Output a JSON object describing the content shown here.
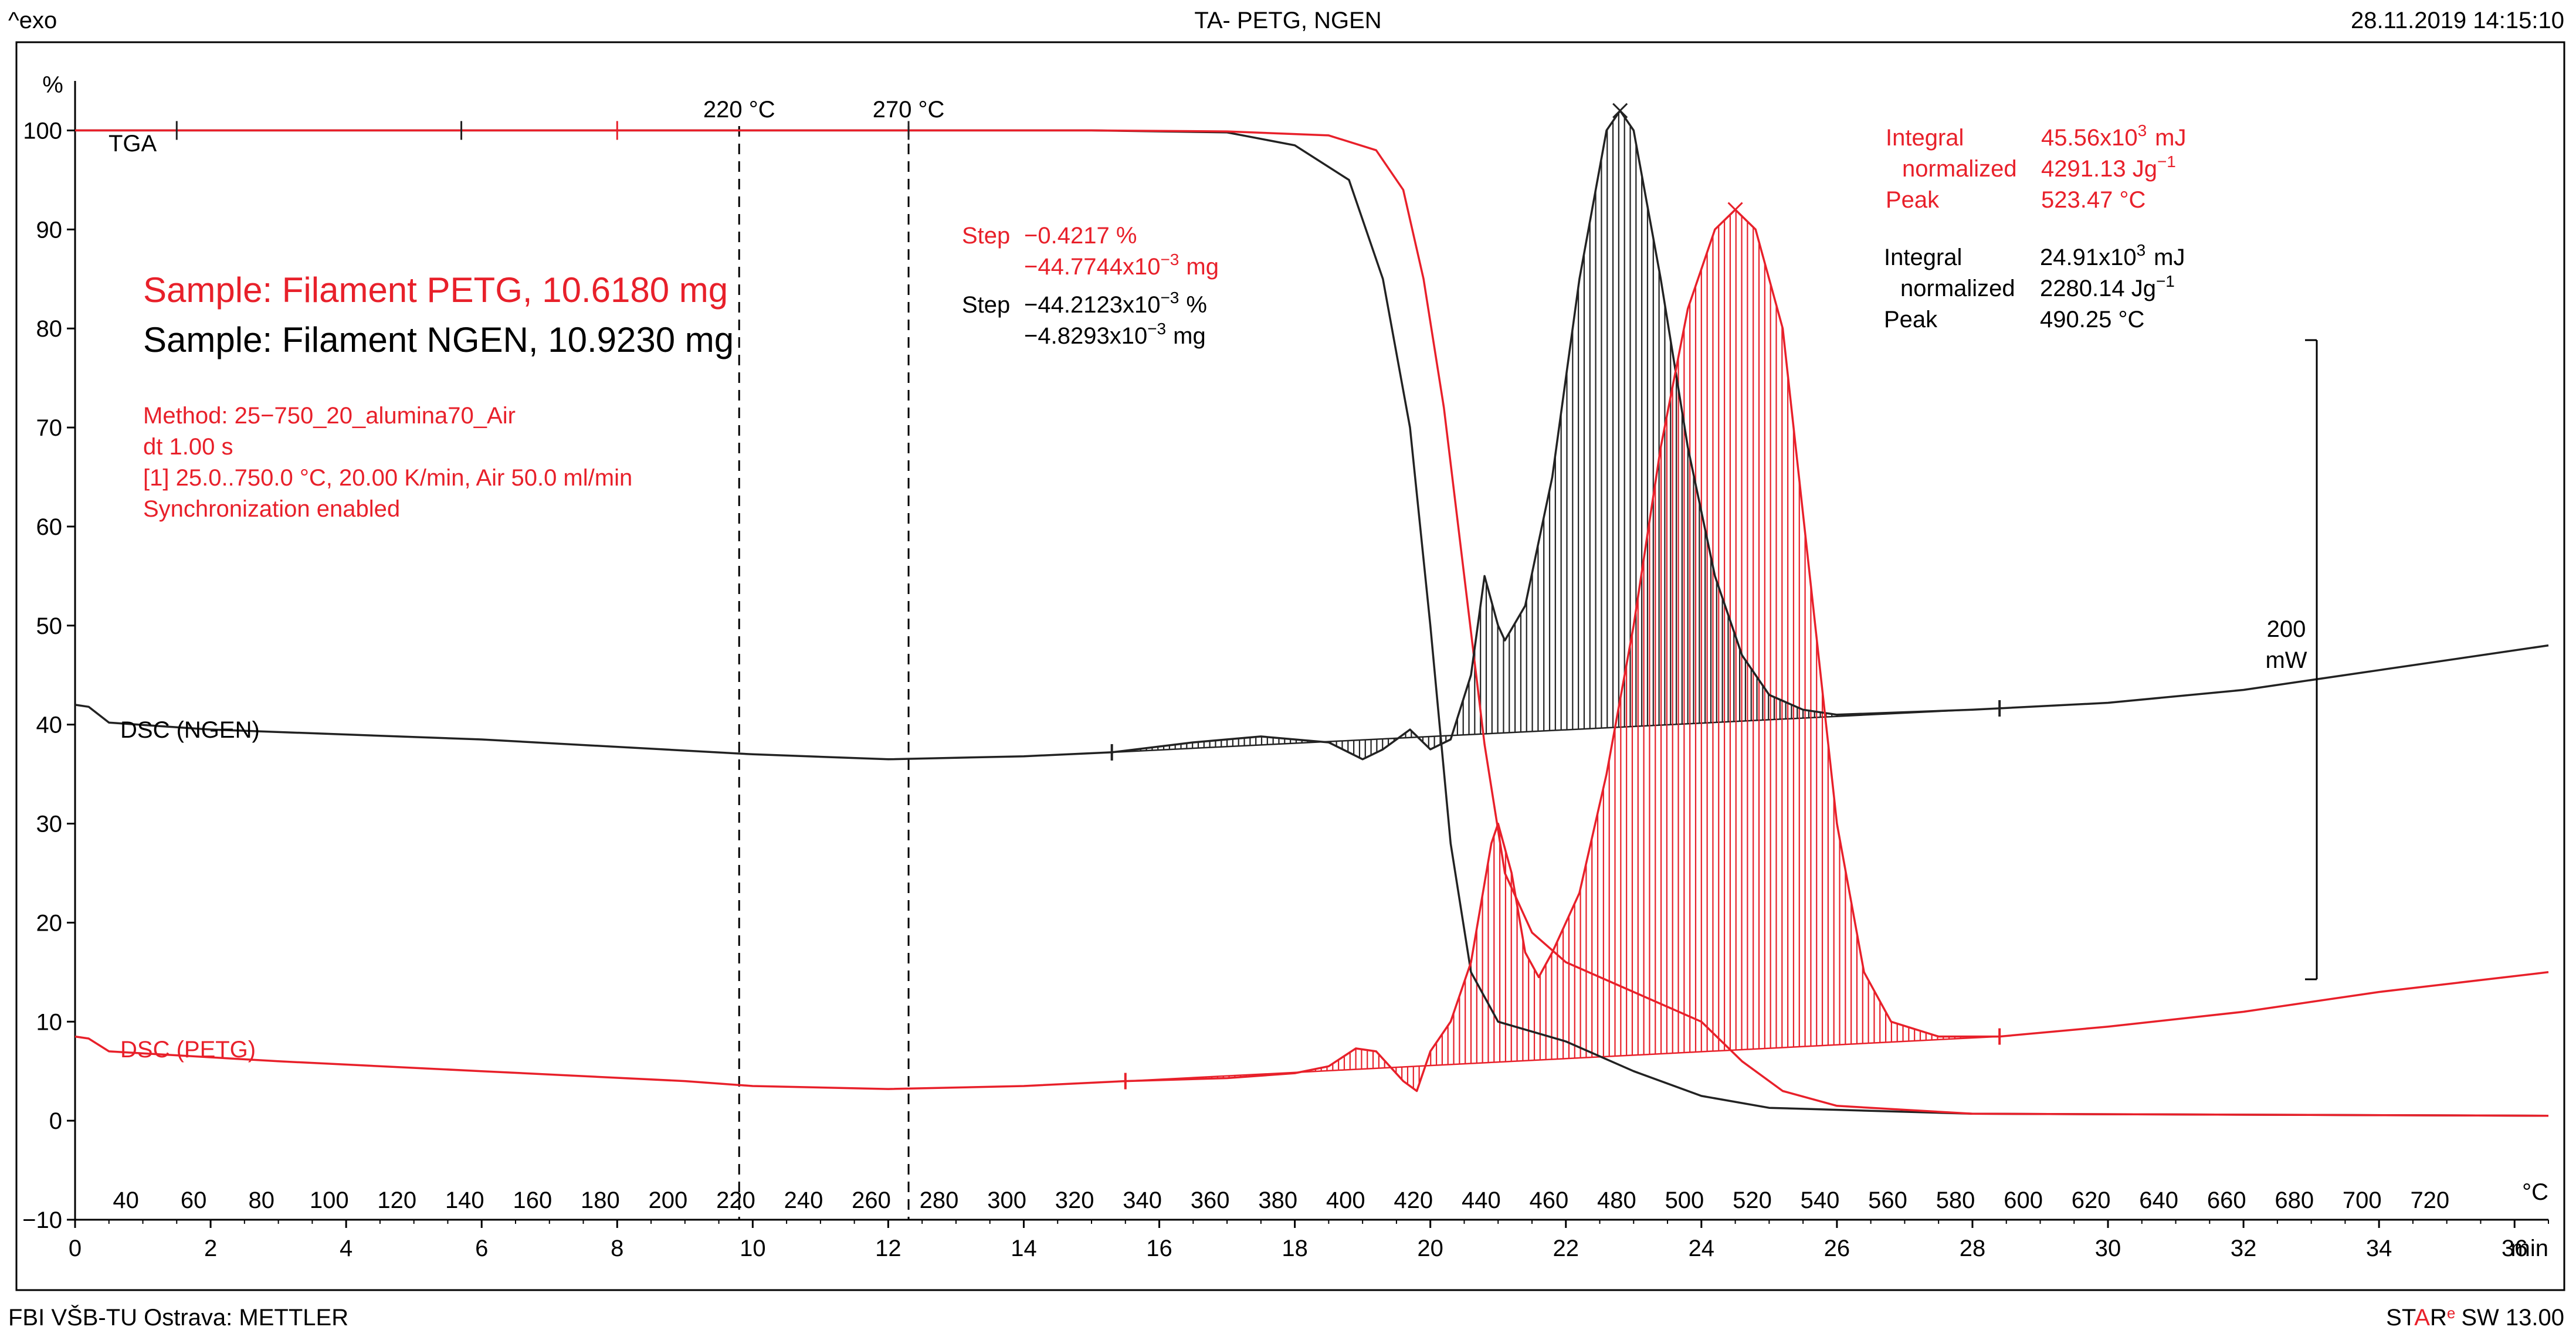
{
  "header": {
    "exo_label": "^exo",
    "title": "TA- PETG, NGEN",
    "timestamp": "28.11.2019 14:15:10"
  },
  "footer": {
    "left": "FBI VŠB-TU Ostrava: METTLER",
    "right_prefix": "ST",
    "right_a": "A",
    "right_r": "R",
    "right_reg": "e",
    "right_suffix": "SW 13.00"
  },
  "colors": {
    "petg": "#e8202a",
    "ngen": "#222222",
    "frame": "#000000"
  },
  "chart_data": {
    "type": "line",
    "title": "TA- PETG, NGEN",
    "y_unit": "%",
    "ylim": [
      -10,
      105
    ],
    "y_ticks": [
      -10,
      0,
      10,
      20,
      30,
      40,
      50,
      60,
      70,
      80,
      90,
      100
    ],
    "y_tick_labels": [
      "−10",
      "0",
      "10",
      "20",
      "30",
      "40",
      "50",
      "60",
      "70",
      "80",
      "90",
      "100"
    ],
    "time_unit": "min",
    "time_range": [
      0,
      36.5
    ],
    "time_ticks": [
      0,
      2,
      4,
      6,
      8,
      10,
      12,
      14,
      16,
      18,
      20,
      22,
      24,
      26,
      28,
      30,
      32,
      34,
      36
    ],
    "time_tick_labels": [
      "0",
      "2",
      "4",
      "6",
      "8",
      "10",
      "12",
      "14",
      "16",
      "18",
      "20",
      "22",
      "24",
      "26",
      "28",
      "30",
      "32",
      "34",
      "36"
    ],
    "temp_unit": "°C",
    "temp_ticks": [
      40,
      60,
      80,
      100,
      120,
      140,
      160,
      180,
      200,
      220,
      240,
      260,
      280,
      300,
      320,
      340,
      360,
      380,
      400,
      420,
      440,
      460,
      480,
      500,
      520,
      540,
      560,
      580,
      600,
      620,
      640,
      660,
      680,
      700,
      720
    ],
    "temp_tick_labels": [
      "40",
      "60",
      "80",
      "100",
      "120",
      "140",
      "160",
      "180",
      "200",
      "220",
      "240",
      "260",
      "280",
      "300",
      "320",
      "340",
      "360",
      "380",
      "400",
      "420",
      "440",
      "460",
      "480",
      "500",
      "520",
      "540",
      "560",
      "580",
      "600",
      "620",
      "640",
      "660",
      "680",
      "700",
      "720"
    ],
    "vlines": [
      {
        "label": "220 °C",
        "time": 9.8
      },
      {
        "label": "270 °C",
        "time": 12.3
      }
    ],
    "series": [
      {
        "name": "TGA (NGEN)",
        "color": "ngen",
        "points": [
          [
            0,
            100
          ],
          [
            5,
            100
          ],
          [
            10,
            100
          ],
          [
            15,
            100
          ],
          [
            17,
            99.8
          ],
          [
            18,
            98.5
          ],
          [
            18.8,
            95
          ],
          [
            19.3,
            85
          ],
          [
            19.7,
            70
          ],
          [
            20.0,
            50
          ],
          [
            20.3,
            28
          ],
          [
            20.6,
            15
          ],
          [
            21.0,
            10
          ],
          [
            22,
            8
          ],
          [
            23,
            5
          ],
          [
            24,
            2.5
          ],
          [
            25,
            1.3
          ],
          [
            28,
            0.7
          ],
          [
            36.5,
            0.5
          ]
        ]
      },
      {
        "name": "TGA (PETG)",
        "color": "petg",
        "points": [
          [
            0,
            100
          ],
          [
            5,
            100
          ],
          [
            10,
            100
          ],
          [
            15,
            100
          ],
          [
            17,
            99.9
          ],
          [
            18.5,
            99.5
          ],
          [
            19.2,
            98
          ],
          [
            19.6,
            94
          ],
          [
            19.9,
            85
          ],
          [
            20.2,
            72
          ],
          [
            20.5,
            55
          ],
          [
            20.8,
            38
          ],
          [
            21.1,
            25
          ],
          [
            21.5,
            19
          ],
          [
            22,
            16
          ],
          [
            23,
            13
          ],
          [
            24,
            10
          ],
          [
            24.6,
            6
          ],
          [
            25.2,
            3
          ],
          [
            26,
            1.5
          ],
          [
            28,
            0.7
          ],
          [
            36.5,
            0.5
          ]
        ]
      },
      {
        "name": "DSC (NGEN)",
        "color": "ngen",
        "points": [
          [
            0,
            42
          ],
          [
            0.2,
            41.8
          ],
          [
            0.5,
            40.2
          ],
          [
            2,
            39.5
          ],
          [
            6,
            38.5
          ],
          [
            10,
            37
          ],
          [
            12,
            36.5
          ],
          [
            14,
            36.8
          ],
          [
            15.3,
            37.2
          ],
          [
            16.5,
            38.2
          ],
          [
            17.5,
            38.8
          ],
          [
            18.5,
            38.2
          ],
          [
            19.0,
            36.5
          ],
          [
            19.3,
            37.5
          ],
          [
            19.7,
            39.5
          ],
          [
            20,
            37.5
          ],
          [
            20.3,
            38.5
          ],
          [
            20.6,
            45
          ],
          [
            20.8,
            55
          ],
          [
            21.0,
            50
          ],
          [
            21.1,
            48.5
          ],
          [
            21.4,
            52
          ],
          [
            21.8,
            65
          ],
          [
            22.2,
            85
          ],
          [
            22.6,
            100
          ],
          [
            22.8,
            102
          ],
          [
            23.0,
            100
          ],
          [
            23.4,
            85
          ],
          [
            23.8,
            68
          ],
          [
            24.2,
            55
          ],
          [
            24.6,
            47
          ],
          [
            25,
            43
          ],
          [
            25.5,
            41.5
          ],
          [
            26,
            41
          ],
          [
            28,
            41.5
          ],
          [
            30,
            42.2
          ],
          [
            32,
            43.5
          ],
          [
            34,
            45.5
          ],
          [
            36.5,
            48
          ]
        ]
      },
      {
        "name": "DSC (PETG)",
        "color": "petg",
        "points": [
          [
            0,
            8.5
          ],
          [
            0.2,
            8.3
          ],
          [
            0.5,
            7
          ],
          [
            3,
            6
          ],
          [
            6,
            5
          ],
          [
            9,
            4
          ],
          [
            10,
            3.5
          ],
          [
            12,
            3.2
          ],
          [
            14,
            3.5
          ],
          [
            15.5,
            4
          ],
          [
            17,
            4.3
          ],
          [
            18,
            4.8
          ],
          [
            18.5,
            5.5
          ],
          [
            18.9,
            7.3
          ],
          [
            19.2,
            7
          ],
          [
            19.6,
            4
          ],
          [
            19.8,
            3
          ],
          [
            20.0,
            7
          ],
          [
            20.3,
            10
          ],
          [
            20.6,
            16
          ],
          [
            20.9,
            28
          ],
          [
            21.0,
            30
          ],
          [
            21.2,
            25
          ],
          [
            21.4,
            17
          ],
          [
            21.6,
            14.5
          ],
          [
            21.8,
            17
          ],
          [
            22.2,
            23
          ],
          [
            22.6,
            35
          ],
          [
            23.0,
            50
          ],
          [
            23.4,
            68
          ],
          [
            23.8,
            82
          ],
          [
            24.2,
            90
          ],
          [
            24.5,
            92
          ],
          [
            24.8,
            90
          ],
          [
            25.2,
            80
          ],
          [
            25.6,
            55
          ],
          [
            26.0,
            30
          ],
          [
            26.4,
            15
          ],
          [
            26.8,
            10
          ],
          [
            27.5,
            8.5
          ],
          [
            28.4,
            8.5
          ],
          [
            30,
            9.5
          ],
          [
            32,
            11
          ],
          [
            34,
            13
          ],
          [
            36.5,
            15
          ]
        ]
      }
    ],
    "curve_labels": {
      "tga": "TGA",
      "dsc_ngen": "DSC (NGEN)",
      "dsc_petg": "DSC (PETG)"
    },
    "samples": {
      "petg": "Sample: Filament PETG, 10.6180 mg",
      "ngen": "Sample: Filament NGEN, 10.9230 mg"
    },
    "method_lines": [
      "Method: 25−750_20_alumina70_Air",
      "dt 1.00 s",
      "[1] 25.0..750.0 °C, 20.00 K/min, Air 50.0 ml/min",
      "Synchronization enabled"
    ],
    "step_petg": {
      "label": "Step",
      "value1": "−0.4217 %",
      "value2_prefix": "−44.7744x10",
      "value2_exp": "−3",
      "value2_unit": "mg"
    },
    "step_ngen": {
      "label": "Step",
      "value1_prefix": "−44.2123x10",
      "value1_exp": "−3",
      "value1_unit": "%",
      "value2_prefix": "−4.8293x10",
      "value2_exp": "−3",
      "value2_unit": "mg"
    },
    "integral_petg": {
      "integral_label": "Integral",
      "integral_prefix": "45.56x10",
      "integral_exp": "3",
      "integral_unit": "mJ",
      "normalized_label": "normalized",
      "normalized_prefix": "4291.13 Jg",
      "normalized_exp": "−1",
      "peak_label": "Peak",
      "peak_value": "523.47 °C"
    },
    "integral_ngen": {
      "integral_label": "Integral",
      "integral_prefix": "24.91x10",
      "integral_exp": "3",
      "integral_unit": "mJ",
      "normalized_label": "normalized",
      "normalized_prefix": "2280.14 Jg",
      "normalized_exp": "−1",
      "peak_label": "Peak",
      "peak_value": "490.25 °C"
    },
    "scale_bar": {
      "value": "200",
      "unit": "mW"
    }
  }
}
